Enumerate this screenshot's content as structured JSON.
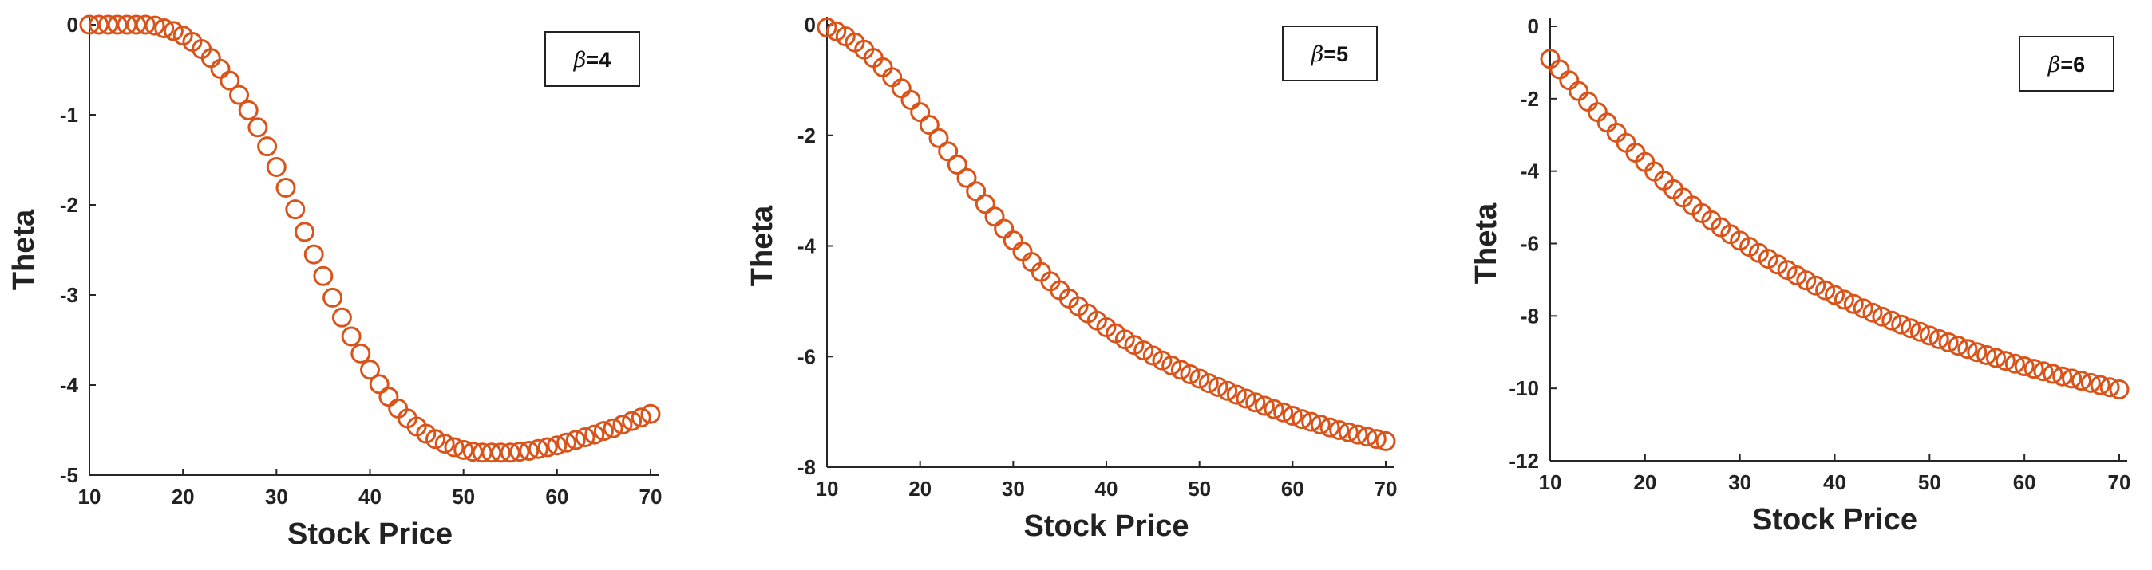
{
  "chart_data": [
    {
      "type": "scatter",
      "marker": "open-circle",
      "color": "#d9541a",
      "title": "",
      "legend": {
        "symbol": "β",
        "text": "=4",
        "placement": "top-right"
      },
      "xlabel": "Stock Price",
      "ylabel": "Theta",
      "xlim": [
        10,
        70
      ],
      "ylim": [
        -5,
        0
      ],
      "xticks": [
        "10",
        "20",
        "30",
        "40",
        "50",
        "60",
        "70"
      ],
      "yticks": [
        "0",
        "-1",
        "-2",
        "-3",
        "-4",
        "-5"
      ],
      "grid": false,
      "x": [
        10,
        11,
        12,
        13,
        14,
        15,
        16,
        17,
        18,
        19,
        20,
        21,
        22,
        23,
        24,
        25,
        26,
        27,
        28,
        29,
        30,
        31,
        32,
        33,
        34,
        35,
        36,
        37,
        38,
        39,
        40,
        41,
        42,
        43,
        44,
        45,
        46,
        47,
        48,
        49,
        50,
        51,
        52,
        53,
        54,
        55,
        56,
        57,
        58,
        59,
        60,
        61,
        62,
        63,
        64,
        65,
        66,
        67,
        68,
        69,
        70
      ],
      "y": [
        0,
        0,
        0,
        0,
        0,
        0,
        0,
        -0.01,
        -0.04,
        -0.07,
        -0.12,
        -0.19,
        -0.27,
        -0.37,
        -0.49,
        -0.62,
        -0.78,
        -0.95,
        -1.14,
        -1.35,
        -1.58,
        -1.81,
        -2.05,
        -2.3,
        -2.55,
        -2.79,
        -3.03,
        -3.25,
        -3.46,
        -3.65,
        -3.83,
        -3.99,
        -4.13,
        -4.26,
        -4.37,
        -4.46,
        -4.54,
        -4.6,
        -4.65,
        -4.69,
        -4.72,
        -4.74,
        -4.75,
        -4.75,
        -4.75,
        -4.75,
        -4.74,
        -4.73,
        -4.71,
        -4.69,
        -4.67,
        -4.64,
        -4.61,
        -4.58,
        -4.55,
        -4.51,
        -4.48,
        -4.44,
        -4.4,
        -4.36,
        -4.32
      ]
    },
    {
      "type": "scatter",
      "marker": "open-circle",
      "color": "#d9541a",
      "title": "",
      "legend": {
        "symbol": "β",
        "text": "=5",
        "placement": "top-right"
      },
      "xlabel": "Stock Price",
      "ylabel": "Theta",
      "xlim": [
        10,
        70
      ],
      "ylim": [
        -8,
        0
      ],
      "xticks": [
        "10",
        "20",
        "30",
        "40",
        "50",
        "60",
        "70"
      ],
      "yticks": [
        "0",
        "-2",
        "-4",
        "-6",
        "-8"
      ],
      "grid": false,
      "x": [
        10,
        11,
        12,
        13,
        14,
        15,
        16,
        17,
        18,
        19,
        20,
        21,
        22,
        23,
        24,
        25,
        26,
        27,
        28,
        29,
        30,
        31,
        32,
        33,
        34,
        35,
        36,
        37,
        38,
        39,
        40,
        41,
        42,
        43,
        44,
        45,
        46,
        47,
        48,
        49,
        50,
        51,
        52,
        53,
        54,
        55,
        56,
        57,
        58,
        59,
        60,
        61,
        62,
        63,
        64,
        65,
        66,
        67,
        68,
        69,
        70
      ],
      "y": [
        -0.05,
        -0.12,
        -0.21,
        -0.32,
        -0.45,
        -0.6,
        -0.77,
        -0.95,
        -1.15,
        -1.36,
        -1.58,
        -1.81,
        -2.05,
        -2.29,
        -2.53,
        -2.77,
        -3.01,
        -3.24,
        -3.47,
        -3.69,
        -3.9,
        -4.1,
        -4.29,
        -4.47,
        -4.64,
        -4.8,
        -4.95,
        -5.09,
        -5.22,
        -5.35,
        -5.47,
        -5.58,
        -5.69,
        -5.79,
        -5.89,
        -5.98,
        -6.07,
        -6.16,
        -6.24,
        -6.32,
        -6.4,
        -6.48,
        -6.55,
        -6.62,
        -6.69,
        -6.76,
        -6.83,
        -6.89,
        -6.95,
        -7.01,
        -7.07,
        -7.13,
        -7.18,
        -7.23,
        -7.28,
        -7.33,
        -7.37,
        -7.41,
        -7.45,
        -7.49,
        -7.53
      ]
    },
    {
      "type": "scatter",
      "marker": "open-circle",
      "color": "#d9541a",
      "title": "",
      "legend": {
        "symbol": "β",
        "text": "=6",
        "placement": "top-right"
      },
      "xlabel": "Stock Price",
      "ylabel": "Theta",
      "xlim": [
        10,
        70
      ],
      "ylim": [
        -12,
        0
      ],
      "xticks": [
        "10",
        "20",
        "30",
        "40",
        "50",
        "60",
        "70"
      ],
      "yticks": [
        "0",
        "-2",
        "-4",
        "-6",
        "-8",
        "-10",
        "-12"
      ],
      "grid": false,
      "x": [
        10,
        11,
        12,
        13,
        14,
        15,
        16,
        17,
        18,
        19,
        20,
        21,
        22,
        23,
        24,
        25,
        26,
        27,
        28,
        29,
        30,
        31,
        32,
        33,
        34,
        35,
        36,
        37,
        38,
        39,
        40,
        41,
        42,
        43,
        44,
        45,
        46,
        47,
        48,
        49,
        50,
        51,
        52,
        53,
        54,
        55,
        56,
        57,
        58,
        59,
        60,
        61,
        62,
        63,
        64,
        65,
        66,
        67,
        68,
        69,
        70
      ],
      "y": [
        -0.9,
        -1.19,
        -1.49,
        -1.79,
        -2.08,
        -2.37,
        -2.66,
        -2.94,
        -3.22,
        -3.49,
        -3.75,
        -4.01,
        -4.26,
        -4.5,
        -4.73,
        -4.95,
        -5.16,
        -5.36,
        -5.55,
        -5.74,
        -5.92,
        -6.09,
        -6.26,
        -6.42,
        -6.58,
        -6.73,
        -6.88,
        -7.02,
        -7.16,
        -7.29,
        -7.42,
        -7.55,
        -7.67,
        -7.79,
        -7.91,
        -8.02,
        -8.13,
        -8.24,
        -8.34,
        -8.44,
        -8.54,
        -8.64,
        -8.73,
        -8.82,
        -8.91,
        -9.0,
        -9.08,
        -9.16,
        -9.24,
        -9.32,
        -9.39,
        -9.46,
        -9.53,
        -9.6,
        -9.67,
        -9.73,
        -9.79,
        -9.85,
        -9.91,
        -9.97,
        -10.03
      ]
    }
  ]
}
